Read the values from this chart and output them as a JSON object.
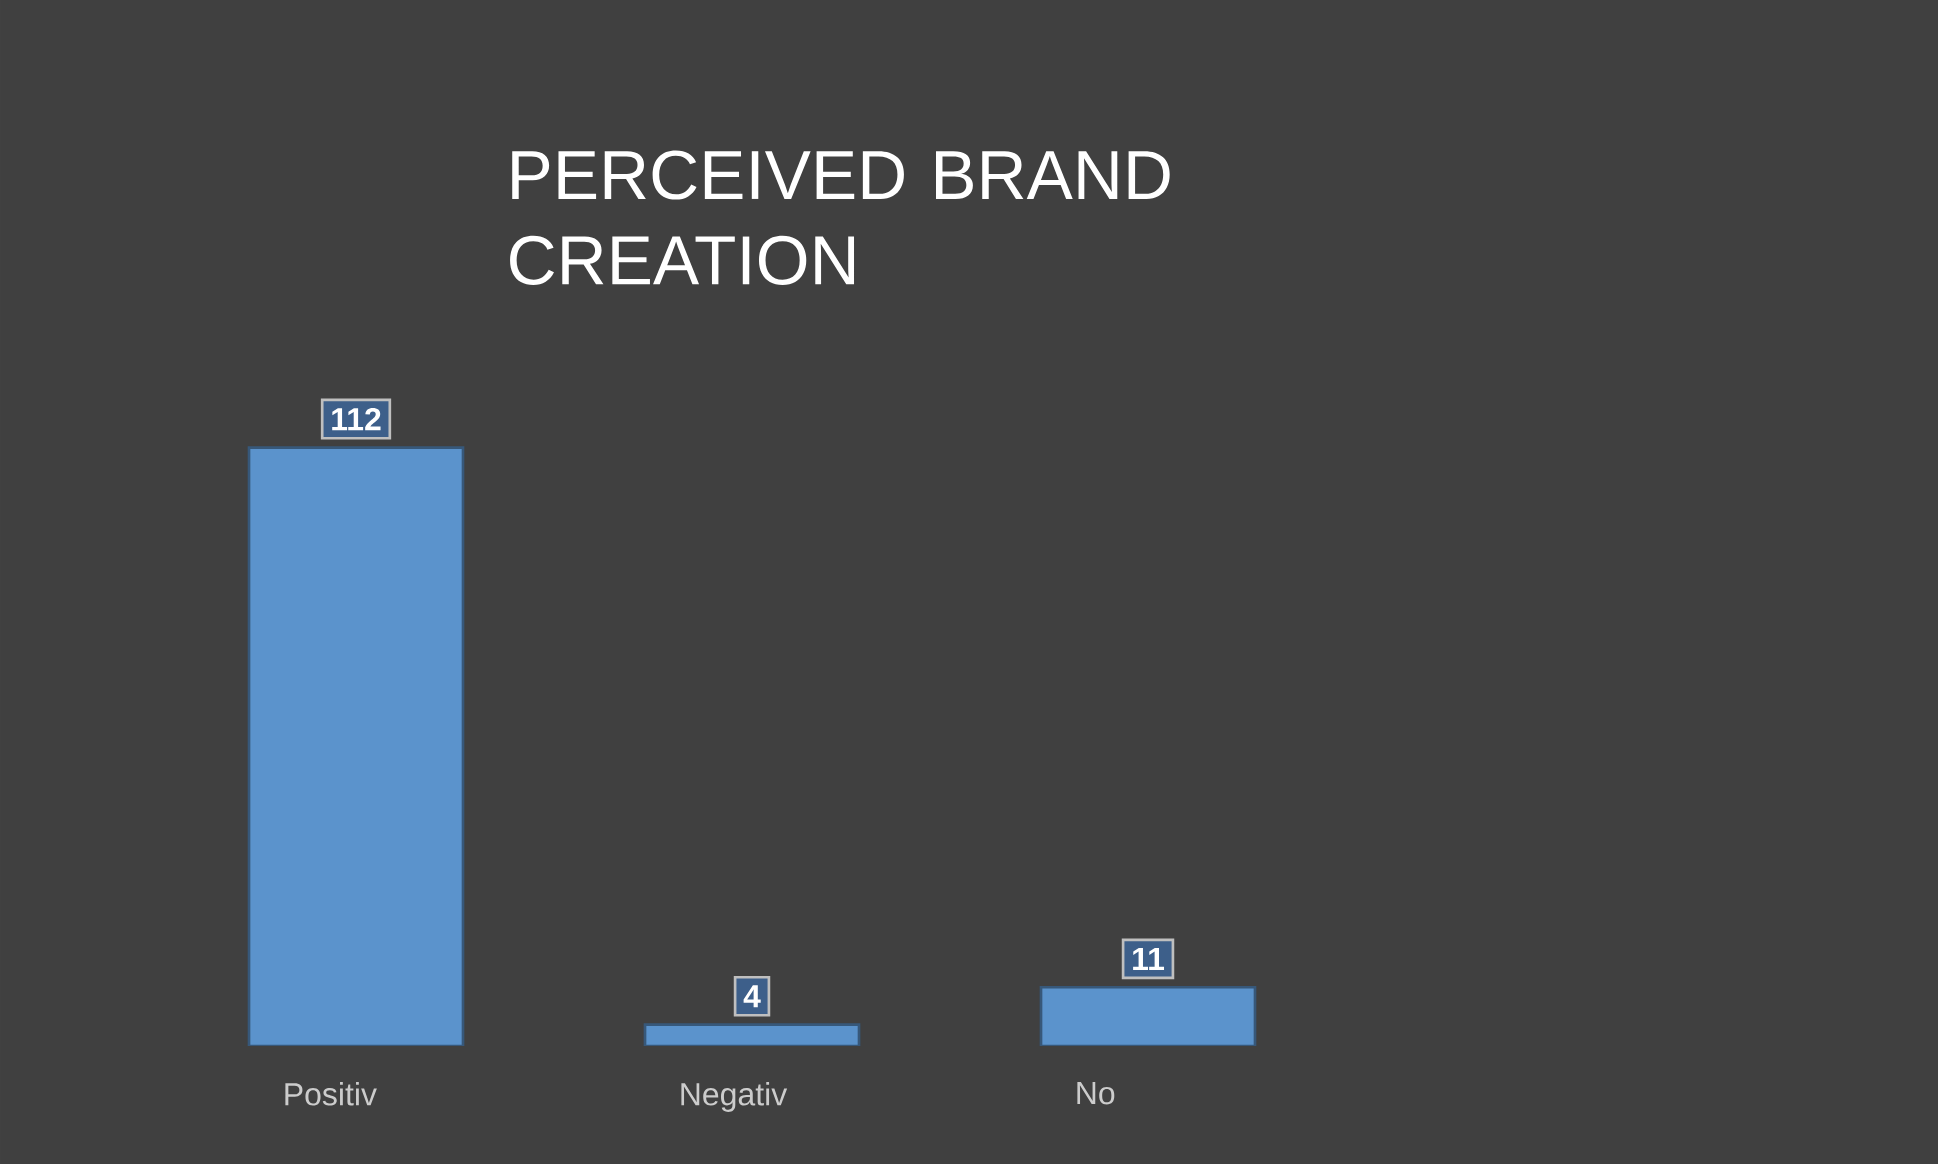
{
  "chart_data": {
    "type": "bar",
    "title": "PERCEIVED BRAND CREATION",
    "categories": [
      "Positiv",
      "Negativ",
      "No"
    ],
    "values": [
      112,
      4,
      11
    ],
    "color": "#5b93cc",
    "data_labels": true,
    "tick_labels": "x"
  }
}
